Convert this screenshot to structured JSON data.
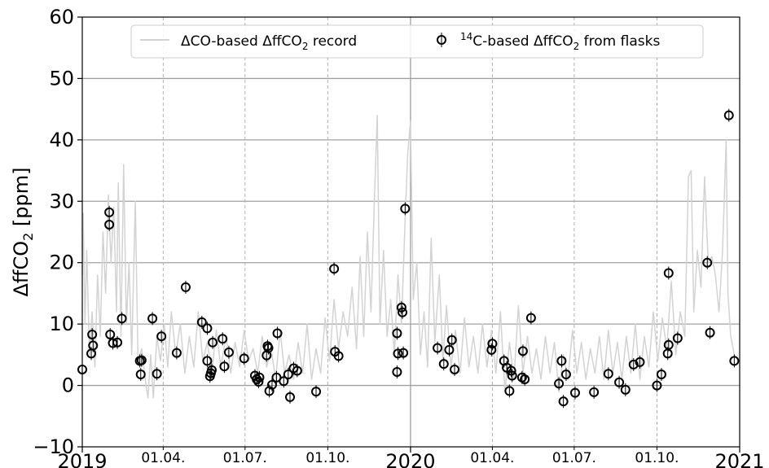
{
  "chart_data": {
    "type": "scatter",
    "ylabel_main": "ΔffCO",
    "ylabel_sub": "2",
    "ylabel_tail": " [ppm]",
    "ylim": [
      -10,
      60
    ],
    "yticks": [
      "−10",
      "0",
      "10",
      "20",
      "30",
      "40",
      "50",
      "60"
    ],
    "xlim": [
      "2019-01-01",
      "2021-01-01"
    ],
    "xticks_major": [
      {
        "date": "2019-01-01",
        "label": "2019"
      },
      {
        "date": "2020-01-01",
        "label": "2020"
      },
      {
        "date": "2021-01-01",
        "label": "2021"
      }
    ],
    "xticks_minor": [
      {
        "date": "2019-04-01",
        "label": "01.04."
      },
      {
        "date": "2019-07-01",
        "label": "01.07."
      },
      {
        "date": "2019-10-01",
        "label": "01.10."
      },
      {
        "date": "2020-04-01",
        "label": "01.04."
      },
      {
        "date": "2020-07-01",
        "label": "01.07."
      },
      {
        "date": "2020-10-01",
        "label": "01.10."
      }
    ],
    "grid": true,
    "legend_position": "top-center",
    "legend": [
      {
        "label_pre": "ΔCO-based ΔffCO",
        "label_sub": "2",
        "label_post": " record",
        "marker": "line",
        "color": "#d3d3d3"
      },
      {
        "label_sup": "14",
        "label_pre": "C-based ΔffCO",
        "label_sub": "2",
        "label_post": " from flasks",
        "marker": "circle",
        "color": "#000000"
      }
    ],
    "series": [
      {
        "name": "ΔCO-based ΔffCO2 record",
        "style": "line",
        "color": "#d3d3d3",
        "points": [
          [
            "2019-01-01",
            18
          ],
          [
            "2019-01-02",
            28
          ],
          [
            "2019-01-04",
            10
          ],
          [
            "2019-01-06",
            22
          ],
          [
            "2019-01-09",
            5
          ],
          [
            "2019-01-12",
            12
          ],
          [
            "2019-01-15",
            3
          ],
          [
            "2019-01-18",
            18
          ],
          [
            "2019-01-21",
            8
          ],
          [
            "2019-01-24",
            25
          ],
          [
            "2019-01-27",
            15
          ],
          [
            "2019-01-30",
            31
          ],
          [
            "2019-02-02",
            20
          ],
          [
            "2019-02-05",
            29
          ],
          [
            "2019-02-08",
            12
          ],
          [
            "2019-02-10",
            33
          ],
          [
            "2019-02-13",
            8
          ],
          [
            "2019-02-16",
            36
          ],
          [
            "2019-02-19",
            10
          ],
          [
            "2019-02-22",
            20
          ],
          [
            "2019-02-25",
            5
          ],
          [
            "2019-03-01",
            30
          ],
          [
            "2019-03-04",
            4
          ],
          [
            "2019-03-08",
            6
          ],
          [
            "2019-03-12",
            1
          ],
          [
            "2019-03-15",
            -2
          ],
          [
            "2019-03-18",
            5
          ],
          [
            "2019-03-21",
            -2
          ],
          [
            "2019-03-25",
            8
          ],
          [
            "2019-03-29",
            4
          ],
          [
            "2019-04-02",
            10
          ],
          [
            "2019-04-06",
            3
          ],
          [
            "2019-04-10",
            12
          ],
          [
            "2019-04-15",
            5
          ],
          [
            "2019-04-20",
            10
          ],
          [
            "2019-04-25",
            2
          ],
          [
            "2019-04-30",
            8
          ],
          [
            "2019-05-05",
            3
          ],
          [
            "2019-05-10",
            12
          ],
          [
            "2019-05-15",
            4
          ],
          [
            "2019-05-20",
            7
          ],
          [
            "2019-05-25",
            2
          ],
          [
            "2019-05-30",
            9
          ],
          [
            "2019-06-04",
            3
          ],
          [
            "2019-06-10",
            8
          ],
          [
            "2019-06-15",
            2
          ],
          [
            "2019-06-20",
            7
          ],
          [
            "2019-06-25",
            3
          ],
          [
            "2019-06-30",
            9
          ],
          [
            "2019-07-05",
            4
          ],
          [
            "2019-07-10",
            6
          ],
          [
            "2019-07-15",
            2
          ],
          [
            "2019-07-20",
            8
          ],
          [
            "2019-07-25",
            3
          ],
          [
            "2019-07-30",
            6
          ],
          [
            "2019-08-04",
            1
          ],
          [
            "2019-08-09",
            9
          ],
          [
            "2019-08-14",
            2
          ],
          [
            "2019-08-19",
            5
          ],
          [
            "2019-08-24",
            1
          ],
          [
            "2019-08-29",
            7
          ],
          [
            "2019-09-03",
            2
          ],
          [
            "2019-09-08",
            10
          ],
          [
            "2019-09-13",
            1
          ],
          [
            "2019-09-18",
            6
          ],
          [
            "2019-09-23",
            2
          ],
          [
            "2019-09-28",
            11
          ],
          [
            "2019-10-03",
            4
          ],
          [
            "2019-10-08",
            14
          ],
          [
            "2019-10-13",
            6
          ],
          [
            "2019-10-18",
            12
          ],
          [
            "2019-10-23",
            8
          ],
          [
            "2019-10-28",
            16
          ],
          [
            "2019-11-02",
            6
          ],
          [
            "2019-11-06",
            21
          ],
          [
            "2019-11-10",
            8
          ],
          [
            "2019-11-14",
            25
          ],
          [
            "2019-11-18",
            12
          ],
          [
            "2019-11-22",
            31
          ],
          [
            "2019-11-25",
            44
          ],
          [
            "2019-11-28",
            10
          ],
          [
            "2019-12-02",
            22
          ],
          [
            "2019-12-06",
            8
          ],
          [
            "2019-12-10",
            14
          ],
          [
            "2019-12-14",
            5
          ],
          [
            "2019-12-18",
            18
          ],
          [
            "2019-12-22",
            10
          ],
          [
            "2019-12-26",
            27
          ],
          [
            "2019-12-29",
            38
          ],
          [
            "2020-01-01",
            43
          ],
          [
            "2020-01-04",
            14
          ],
          [
            "2020-01-08",
            20
          ],
          [
            "2020-01-12",
            5
          ],
          [
            "2020-01-16",
            12
          ],
          [
            "2020-01-20",
            3
          ],
          [
            "2020-01-24",
            24
          ],
          [
            "2020-01-28",
            7
          ],
          [
            "2020-02-02",
            18
          ],
          [
            "2020-02-06",
            4
          ],
          [
            "2020-02-10",
            13
          ],
          [
            "2020-02-15",
            3
          ],
          [
            "2020-02-20",
            9
          ],
          [
            "2020-02-25",
            2
          ],
          [
            "2020-03-01",
            11
          ],
          [
            "2020-03-06",
            3
          ],
          [
            "2020-03-11",
            8
          ],
          [
            "2020-03-16",
            2
          ],
          [
            "2020-03-21",
            10
          ],
          [
            "2020-03-26",
            3
          ],
          [
            "2020-03-31",
            9
          ],
          [
            "2020-04-05",
            2
          ],
          [
            "2020-04-10",
            12
          ],
          [
            "2020-04-15",
            -1
          ],
          [
            "2020-04-20",
            7
          ],
          [
            "2020-04-25",
            1
          ],
          [
            "2020-04-30",
            13
          ],
          [
            "2020-05-05",
            2
          ],
          [
            "2020-05-10",
            8
          ],
          [
            "2020-05-15",
            2
          ],
          [
            "2020-05-20",
            6
          ],
          [
            "2020-05-25",
            1
          ],
          [
            "2020-05-30",
            8
          ],
          [
            "2020-06-04",
            2
          ],
          [
            "2020-06-09",
            7
          ],
          [
            "2020-06-14",
            -1
          ],
          [
            "2020-06-19",
            5
          ],
          [
            "2020-06-24",
            1
          ],
          [
            "2020-06-29",
            9
          ],
          [
            "2020-07-04",
            2
          ],
          [
            "2020-07-09",
            7
          ],
          [
            "2020-07-14",
            1
          ],
          [
            "2020-07-19",
            6
          ],
          [
            "2020-07-24",
            2
          ],
          [
            "2020-07-29",
            8
          ],
          [
            "2020-08-03",
            1
          ],
          [
            "2020-08-08",
            9
          ],
          [
            "2020-08-13",
            2
          ],
          [
            "2020-08-18",
            7
          ],
          [
            "2020-08-23",
            1
          ],
          [
            "2020-08-28",
            8
          ],
          [
            "2020-09-02",
            2
          ],
          [
            "2020-09-07",
            10
          ],
          [
            "2020-09-12",
            1
          ],
          [
            "2020-09-17",
            8
          ],
          [
            "2020-09-22",
            3
          ],
          [
            "2020-09-27",
            12
          ],
          [
            "2020-10-02",
            4
          ],
          [
            "2020-10-07",
            11
          ],
          [
            "2020-10-12",
            6
          ],
          [
            "2020-10-17",
            17
          ],
          [
            "2020-10-22",
            5
          ],
          [
            "2020-10-27",
            12
          ],
          [
            "2020-11-01",
            8
          ],
          [
            "2020-11-05",
            34
          ],
          [
            "2020-11-08",
            35
          ],
          [
            "2020-11-11",
            12
          ],
          [
            "2020-11-15",
            22
          ],
          [
            "2020-11-19",
            16
          ],
          [
            "2020-11-23",
            34
          ],
          [
            "2020-11-27",
            20
          ],
          [
            "2020-12-01",
            21
          ],
          [
            "2020-12-05",
            18
          ],
          [
            "2020-12-09",
            12
          ],
          [
            "2020-12-13",
            22
          ],
          [
            "2020-12-17",
            40
          ],
          [
            "2020-12-19",
            15
          ],
          [
            "2020-12-22",
            8
          ],
          [
            "2020-12-26",
            5
          ],
          [
            "2020-12-31",
            4
          ]
        ]
      },
      {
        "name": "14C-based ΔffCO2 from flasks",
        "style": "marker-circle-open",
        "color": "#000000",
        "points": [
          [
            "2019-01-01",
            2.6
          ],
          [
            "2019-01-11",
            5.2
          ],
          [
            "2019-01-12",
            8.3
          ],
          [
            "2019-01-13",
            6.5
          ],
          [
            "2019-01-31",
            28.2
          ],
          [
            "2019-01-31",
            26.2
          ],
          [
            "2019-02-01",
            8.3
          ],
          [
            "2019-02-04",
            6.9
          ],
          [
            "2019-02-09",
            7.0
          ],
          [
            "2019-02-14",
            10.9
          ],
          [
            "2019-03-06",
            4.0
          ],
          [
            "2019-03-07",
            1.8
          ],
          [
            "2019-03-08",
            4.1
          ],
          [
            "2019-03-20",
            10.9
          ],
          [
            "2019-03-25",
            1.9
          ],
          [
            "2019-03-30",
            8.0
          ],
          [
            "2019-04-16",
            5.3
          ],
          [
            "2019-04-26",
            16.0
          ],
          [
            "2019-05-14",
            10.3
          ],
          [
            "2019-05-20",
            9.3
          ],
          [
            "2019-05-20",
            4.0
          ],
          [
            "2019-05-23",
            1.5
          ],
          [
            "2019-05-24",
            2.0
          ],
          [
            "2019-05-25",
            2.5
          ],
          [
            "2019-05-26",
            7.0
          ],
          [
            "2019-06-06",
            7.6
          ],
          [
            "2019-06-08",
            3.1
          ],
          [
            "2019-06-13",
            5.4
          ],
          [
            "2019-06-30",
            4.4
          ],
          [
            "2019-07-12",
            1.6
          ],
          [
            "2019-07-14",
            1.0
          ],
          [
            "2019-07-16",
            0.6
          ],
          [
            "2019-07-17",
            1.3
          ],
          [
            "2019-07-25",
            4.9
          ],
          [
            "2019-07-26",
            6.4
          ],
          [
            "2019-07-27",
            6.1
          ],
          [
            "2019-07-28",
            -0.9
          ],
          [
            "2019-07-31",
            0.1
          ],
          [
            "2019-08-05",
            1.3
          ],
          [
            "2019-08-06",
            8.5
          ],
          [
            "2019-08-13",
            0.7
          ],
          [
            "2019-08-18",
            1.8
          ],
          [
            "2019-08-20",
            -1.9
          ],
          [
            "2019-08-24",
            2.8
          ],
          [
            "2019-08-28",
            2.4
          ],
          [
            "2019-09-18",
            -1.0
          ],
          [
            "2019-10-08",
            19.0
          ],
          [
            "2019-10-09",
            5.5
          ],
          [
            "2019-10-13",
            4.8
          ],
          [
            "2019-12-17",
            8.5
          ],
          [
            "2019-12-17",
            2.2
          ],
          [
            "2019-12-18",
            5.2
          ],
          [
            "2019-12-22",
            12.7
          ],
          [
            "2019-12-23",
            11.9
          ],
          [
            "2019-12-24",
            5.3
          ],
          [
            "2019-12-26",
            28.8
          ],
          [
            "2020-01-31",
            6.1
          ],
          [
            "2020-02-07",
            3.5
          ],
          [
            "2020-02-13",
            5.8
          ],
          [
            "2020-02-16",
            7.4
          ],
          [
            "2020-02-19",
            2.6
          ],
          [
            "2020-03-31",
            5.8
          ],
          [
            "2020-04-01",
            6.8
          ],
          [
            "2020-04-14",
            4.0
          ],
          [
            "2020-04-17",
            2.9
          ],
          [
            "2020-04-20",
            -0.9
          ],
          [
            "2020-04-22",
            2.4
          ],
          [
            "2020-04-23",
            1.6
          ],
          [
            "2020-05-04",
            1.3
          ],
          [
            "2020-05-05",
            5.6
          ],
          [
            "2020-05-07",
            1.0
          ],
          [
            "2020-05-14",
            11.0
          ],
          [
            "2020-06-14",
            0.3
          ],
          [
            "2020-06-17",
            4.0
          ],
          [
            "2020-06-19",
            -2.6
          ],
          [
            "2020-06-22",
            1.8
          ],
          [
            "2020-07-02",
            -1.2
          ],
          [
            "2020-07-23",
            -1.1
          ],
          [
            "2020-08-08",
            1.9
          ],
          [
            "2020-08-20",
            0.5
          ],
          [
            "2020-08-27",
            -0.7
          ],
          [
            "2020-09-05",
            3.4
          ],
          [
            "2020-09-12",
            3.8
          ],
          [
            "2020-10-01",
            0.0
          ],
          [
            "2020-10-06",
            1.8
          ],
          [
            "2020-10-13",
            5.2
          ],
          [
            "2020-10-14",
            18.3
          ],
          [
            "2020-10-14",
            6.6
          ],
          [
            "2020-10-24",
            7.7
          ],
          [
            "2020-11-26",
            20.0
          ],
          [
            "2020-11-29",
            8.6
          ],
          [
            "2020-12-20",
            44.0
          ],
          [
            "2020-12-26",
            4.0
          ]
        ]
      }
    ]
  }
}
